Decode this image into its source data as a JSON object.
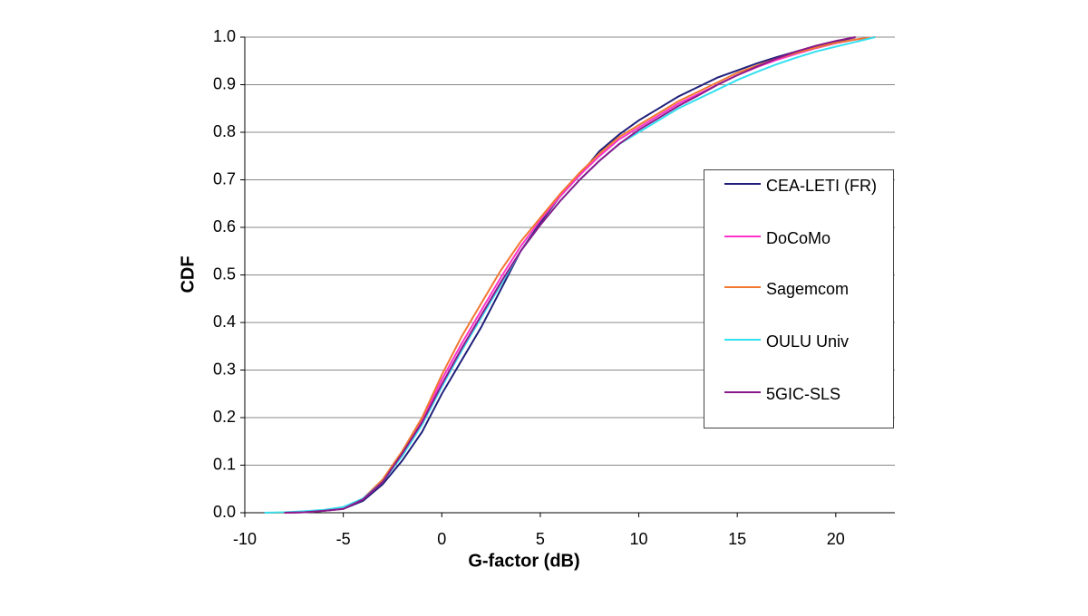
{
  "chart_data": {
    "type": "line",
    "x_label": "G-factor (dB)",
    "y_label": "CDF",
    "x": [
      -9,
      -8,
      -7,
      -6,
      -5,
      -4,
      -3,
      -2,
      -1,
      0,
      1,
      2,
      3,
      4,
      5,
      6,
      7,
      8,
      9,
      10,
      11,
      12,
      13,
      14,
      15,
      16,
      17,
      18,
      19,
      20,
      21,
      22
    ],
    "series": [
      {
        "name": "CEA-LETI (FR)",
        "color": "#1f1f7a",
        "values": [
          null,
          0,
          0.001,
          0.004,
          0.008,
          0.025,
          0.06,
          0.11,
          0.17,
          0.25,
          0.32,
          0.39,
          0.47,
          0.55,
          0.61,
          0.665,
          0.71,
          0.76,
          0.795,
          0.825,
          0.85,
          0.875,
          0.895,
          0.915,
          0.93,
          0.945,
          0.958,
          0.97,
          0.98,
          0.99,
          1.0,
          null
        ]
      },
      {
        "name": "DoCoMo",
        "color": "#ff33cc",
        "values": [
          null,
          0,
          0.001,
          0.004,
          0.008,
          0.028,
          0.065,
          0.125,
          0.195,
          0.28,
          0.355,
          0.425,
          0.495,
          0.56,
          0.615,
          0.665,
          0.71,
          0.75,
          0.785,
          0.81,
          0.835,
          0.86,
          0.88,
          0.9,
          0.92,
          0.937,
          0.952,
          0.965,
          0.977,
          0.987,
          0.995,
          1.0
        ]
      },
      {
        "name": "Sagemcom",
        "color": "#f07830",
        "values": [
          0,
          0,
          0.002,
          0.005,
          0.01,
          0.03,
          0.07,
          0.13,
          0.2,
          0.29,
          0.37,
          0.44,
          0.51,
          0.57,
          0.62,
          0.67,
          0.715,
          0.755,
          0.79,
          0.815,
          0.84,
          0.865,
          0.885,
          0.905,
          0.925,
          0.94,
          0.955,
          0.967,
          0.978,
          0.988,
          0.995,
          1.0
        ]
      },
      {
        "name": "OULU Univ",
        "color": "#33e0f0",
        "values": [
          0,
          0.001,
          0.003,
          0.006,
          0.012,
          0.03,
          0.065,
          0.12,
          0.185,
          0.265,
          0.34,
          0.41,
          0.48,
          0.55,
          0.605,
          0.655,
          0.7,
          0.74,
          0.775,
          0.8,
          0.825,
          0.85,
          0.87,
          0.89,
          0.91,
          0.927,
          0.943,
          0.957,
          0.97,
          0.98,
          0.99,
          1.0
        ]
      },
      {
        "name": "5GIC-SLS",
        "color": "#8b1a8b",
        "values": [
          null,
          0,
          0.001,
          0.004,
          0.008,
          0.028,
          0.065,
          0.125,
          0.19,
          0.27,
          0.345,
          0.415,
          0.485,
          0.55,
          0.605,
          0.655,
          0.7,
          0.74,
          0.775,
          0.805,
          0.83,
          0.855,
          0.877,
          0.9,
          0.92,
          0.938,
          0.955,
          0.97,
          0.982,
          0.992,
          1.0,
          null
        ]
      }
    ],
    "xlim": [
      -10,
      23
    ],
    "xticks": [
      -10,
      -5,
      0,
      5,
      10,
      15,
      20
    ],
    "ylim": [
      0,
      1
    ],
    "yticks": [
      {
        "value": 0,
        "label": "0.0"
      },
      0.1,
      0.2,
      0.3,
      0.4,
      0.5,
      0.6,
      0.7,
      0.8,
      0.9,
      {
        "value": 1,
        "label": "1.0"
      }
    ],
    "grid": true,
    "legend_position": "right"
  }
}
